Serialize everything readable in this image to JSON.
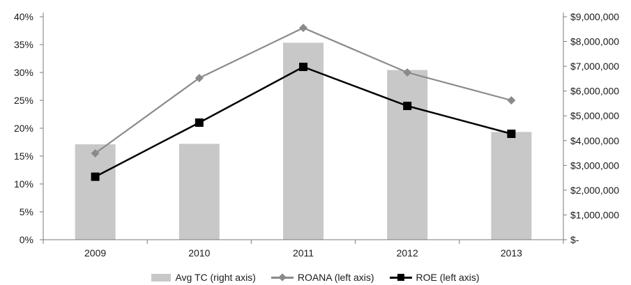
{
  "chart_data": {
    "type": "bar+line",
    "categories": [
      "2009",
      "2010",
      "2011",
      "2012",
      "2013"
    ],
    "left_axis": {
      "ylim": [
        0,
        40
      ],
      "ticks": [
        "0%",
        "5%",
        "10%",
        "15%",
        "20%",
        "25%",
        "30%",
        "35%",
        "40%"
      ],
      "tick_values": [
        0,
        5,
        10,
        15,
        20,
        25,
        30,
        35,
        40
      ]
    },
    "right_axis": {
      "ylim": [
        0,
        9000000
      ],
      "ticks": [
        "$-",
        "$1,000,000",
        "$2,000,000",
        "$3,000,000",
        "$4,000,000",
        "$5,000,000",
        "$6,000,000",
        "$7,000,000",
        "$8,000,000",
        "$9,000,000"
      ],
      "tick_values": [
        0,
        1000000,
        2000000,
        3000000,
        4000000,
        5000000,
        6000000,
        7000000,
        8000000,
        9000000
      ]
    },
    "series": [
      {
        "name": "Avg TC (right axis)",
        "type": "bar",
        "axis": "right",
        "color": "#c8c8c8",
        "values": [
          3850000,
          3870000,
          7950000,
          6850000,
          4350000
        ]
      },
      {
        "name": "ROANA (left axis)",
        "type": "line",
        "axis": "left",
        "color": "#8a8a8a",
        "marker": "diamond",
        "values": [
          15.5,
          29.0,
          38.0,
          30.0,
          25.0
        ]
      },
      {
        "name": "ROE (left axis)",
        "type": "line",
        "axis": "left",
        "color": "#000000",
        "marker": "square",
        "values": [
          11.3,
          21.0,
          31.0,
          24.0,
          19.0
        ]
      }
    ],
    "grid": false,
    "legend_position": "bottom"
  }
}
